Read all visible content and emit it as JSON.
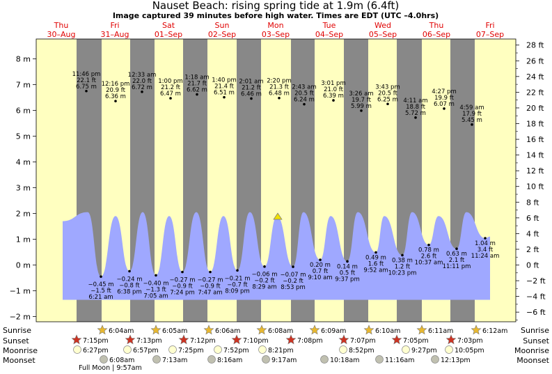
{
  "header": {
    "title": "Nauset Beach: rising  spring tide at 1.9m (6.4ft)",
    "subtitle": "Image captured 39 minutes before high water. Times are EDT (UTC –4.0hrs)"
  },
  "days": [
    {
      "name": "Thu",
      "date": "30–Aug"
    },
    {
      "name": "Fri",
      "date": "31–Aug"
    },
    {
      "name": "Sat",
      "date": "01–Sep"
    },
    {
      "name": "Sun",
      "date": "02–Sep"
    },
    {
      "name": "Mon",
      "date": "03–Sep"
    },
    {
      "name": "Tue",
      "date": "04–Sep"
    },
    {
      "name": "Wed",
      "date": "05–Sep"
    },
    {
      "name": "Thu",
      "date": "06–Sep"
    },
    {
      "name": "Fri",
      "date": "07–Sep"
    }
  ],
  "chart_data": {
    "type": "area",
    "y_left_unit": "m",
    "y_right_unit": "ft",
    "ylim_m": [
      -2.25,
      8.6
    ],
    "y_left_ticks": [
      "−2 m",
      "−1 m",
      "0 m",
      "1 m",
      "2 m",
      "3 m",
      "4 m",
      "5 m",
      "6 m",
      "7 m",
      "8 m"
    ],
    "y_right_ticks": [
      "−6 ft",
      "−4 ft",
      "−2 ft",
      "0 ft",
      "2 ft",
      "4 ft",
      "6 ft",
      "8 ft",
      "10 ft",
      "12 ft",
      "14 ft",
      "16 ft",
      "18 ft",
      "20 ft",
      "22 ft",
      "24 ft",
      "26 ft",
      "28 ft"
    ],
    "current": {
      "height_m": 1.9,
      "height_ft": 6.4,
      "state": "rising"
    },
    "high_tides": [
      {
        "time": "11:46 pm",
        "pct": "22.1 ft",
        "height_m": 6.75,
        "label_m": "6.75 m"
      },
      {
        "time": "12:16 pm",
        "pct": "20.9 ft",
        "height_m": 6.36,
        "label_m": "6.36 m"
      },
      {
        "time": "12:33 am",
        "pct": "22.0 ft",
        "height_m": 6.72,
        "label_m": "6.72 m"
      },
      {
        "time": "1:00 pm",
        "pct": "21.2 ft",
        "height_m": 6.47,
        "label_m": "6.47 m"
      },
      {
        "time": "1:18 am",
        "pct": "21.7 ft",
        "height_m": 6.62,
        "label_m": "6.62 m"
      },
      {
        "time": "1:40 pm",
        "pct": "21.4 ft",
        "height_m": 6.51,
        "label_m": "6.51 m"
      },
      {
        "time": "2:01 am",
        "pct": "21.2 ft",
        "height_m": 6.46,
        "label_m": "6.46 m"
      },
      {
        "time": "2:20 pm",
        "pct": "21.3 ft",
        "height_m": 6.48,
        "label_m": "6.48 m"
      },
      {
        "time": "2:43 am",
        "pct": "20.5 ft",
        "height_m": 6.24,
        "label_m": "6.24 m"
      },
      {
        "time": "3:01 pm",
        "pct": "21.0 ft",
        "height_m": 6.39,
        "label_m": "6.39 m"
      },
      {
        "time": "3:26 am",
        "pct": "19.7 ft",
        "height_m": 5.99,
        "label_m": "5.99 m"
      },
      {
        "time": "3:43 pm",
        "pct": "20.5 ft",
        "height_m": 6.25,
        "label_m": "6.25 m"
      },
      {
        "time": "4:11 am",
        "pct": "18.8 ft",
        "height_m": 5.72,
        "label_m": "5.72 m"
      },
      {
        "time": "4:27 pm",
        "pct": "19.9 ft",
        "height_m": 6.07,
        "label_m": "6.07 m"
      },
      {
        "time": "4:59 am",
        "pct": "17.9 ft",
        "height_m": 5.45,
        "label_m": "5.45 m"
      }
    ],
    "low_tides_below": [
      {
        "m": "−0.45 m",
        "ft": "−1.5 ft",
        "time": "6:21 am",
        "height_m": -0.45
      },
      {
        "m": "−0.24 m",
        "ft": "−0.8 ft",
        "time": "6:38 pm",
        "height_m": -0.24
      },
      {
        "m": "−0.40 m",
        "ft": "−1.3 ft",
        "time": "7:05 am",
        "height_m": -0.4
      },
      {
        "m": "−0.27 m",
        "ft": "−0.9 ft",
        "time": "7:24 pm",
        "height_m": -0.27
      },
      {
        "m": "−0.27 m",
        "ft": "−0.9 ft",
        "time": "7:47 am",
        "height_m": -0.27
      },
      {
        "m": "−0.21 m",
        "ft": "−0.7 ft",
        "time": "8:09 pm",
        "height_m": -0.21
      },
      {
        "m": "−0.06 m",
        "ft": "−0.2 ft",
        "time": "8:29 am",
        "height_m": -0.06
      },
      {
        "m": "−0.07 m",
        "ft": "−0.2 ft",
        "time": "8:53 pm",
        "height_m": -0.07
      }
    ],
    "low_tides_above": [
      {
        "m": "0.20 m",
        "ft": "0.7 ft",
        "time": "9:10 am",
        "height_m": 0.2
      },
      {
        "m": "0.14 m",
        "ft": "0.5 ft",
        "time": "9:37 pm",
        "height_m": 0.14
      },
      {
        "m": "0.49 m",
        "ft": "1.6 ft",
        "time": "9:52 am",
        "height_m": 0.49
      },
      {
        "m": "0.38 m",
        "ft": "1.2 ft",
        "time": "10:23 pm",
        "height_m": 0.38
      },
      {
        "m": "0.78 m",
        "ft": "2.6 ft",
        "time": "10:37 am",
        "height_m": 0.78
      },
      {
        "m": "0.63 m",
        "ft": "2.1 ft",
        "time": "11:11 pm",
        "height_m": 0.63
      },
      {
        "m": "1.04 m",
        "ft": "3.4 ft",
        "time": "11:24 am",
        "height_m": 1.04
      }
    ]
  },
  "astro": {
    "labels": {
      "sunrise": "Sunrise",
      "sunset": "Sunset",
      "moonrise": "Moonrise",
      "moonset": "Moonset"
    },
    "sunrise": [
      "6:04am",
      "6:05am",
      "6:06am",
      "6:08am",
      "6:09am",
      "6:10am",
      "6:11am",
      "6:12am"
    ],
    "sunset": [
      "7:15pm",
      "7:13pm",
      "7:12pm",
      "7:10pm",
      "7:08pm",
      "7:07pm",
      "7:05pm",
      "7:03pm"
    ],
    "moonrise": [
      "6:27pm",
      "6:57pm",
      "7:25pm",
      "7:52pm",
      "8:21pm",
      "8:52pm",
      "9:27pm",
      "10:05pm"
    ],
    "moonset": [
      "6:08am",
      "7:13am",
      "8:16am",
      "9:17am",
      "10:18am",
      "11:16am",
      "12:13pm"
    ],
    "full_moon": "Full Moon | 9:57am"
  },
  "colors": {
    "day_bg": "#ffffc0",
    "night_bg": "#888888",
    "water": "#9fa8ff",
    "sun_star": "#e8b830",
    "sunset_star": "#cc3322",
    "moonrise": "#ffffd0",
    "moonset": "#c0c0b0",
    "marker": "#f0e000",
    "day_text": "#e00000"
  }
}
